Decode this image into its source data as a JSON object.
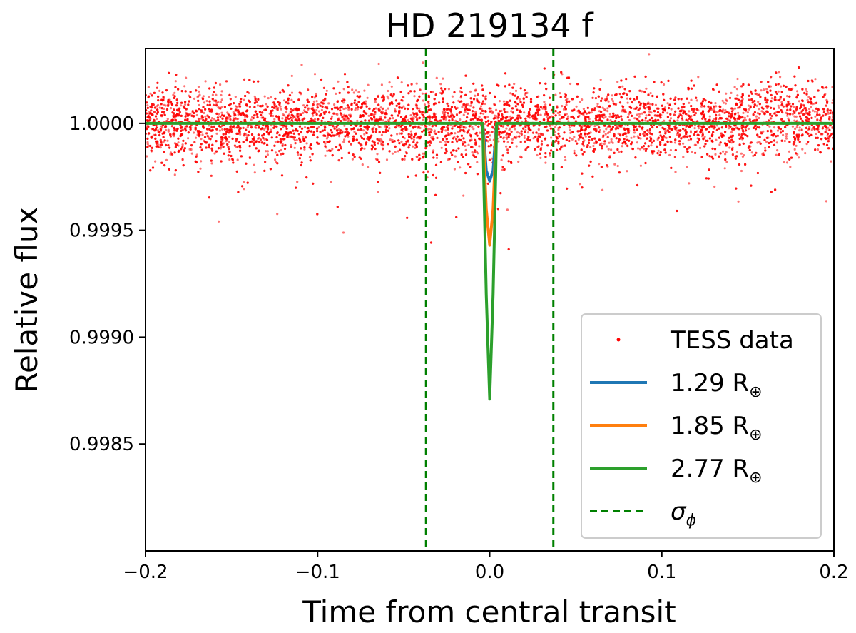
{
  "chart_data": {
    "type": "scatter",
    "title": "HD 219134 f",
    "xlabel": "Time from central transit",
    "ylabel": "Relative flux",
    "xlim": [
      -0.2,
      0.2
    ],
    "ylim": [
      0.998,
      1.00035
    ],
    "xticks": [
      -0.2,
      -0.1,
      0.0,
      0.1,
      0.2
    ],
    "xtick_labels": [
      "−0.2",
      "−0.1",
      "0.0",
      "0.1",
      "0.2"
    ],
    "yticks": [
      0.9985,
      0.999,
      0.9995,
      1.0
    ],
    "ytick_labels": [
      "0.9985",
      "0.9990",
      "0.9995",
      "1.0000"
    ],
    "grid": false,
    "legend_position": "lower right",
    "scatter": {
      "name": "TESS data",
      "color": "#ff0000",
      "baseline": 1.0,
      "scatter_sigma": 8.5e-05,
      "n_points": 9000
    },
    "series": [
      {
        "name": "1.29 R",
        "subscript": "⊕",
        "color": "#1f77b4",
        "x": [
          -0.004,
          -0.0035,
          -0.002,
          0.0,
          0.002,
          0.0035,
          0.004
        ],
        "values": [
          1.0,
          0.99995,
          0.99978,
          0.99973,
          0.99978,
          0.99995,
          1.0
        ]
      },
      {
        "name": "1.85 R",
        "subscript": "⊕",
        "color": "#ff7f0e",
        "x": [
          -0.004,
          -0.0035,
          -0.002,
          0.0,
          0.002,
          0.0035,
          0.004
        ],
        "values": [
          1.0,
          0.9999,
          0.9996,
          0.99943,
          0.9996,
          0.9999,
          1.0
        ]
      },
      {
        "name": "2.77 R",
        "subscript": "⊕",
        "color": "#2ca02c",
        "x": [
          -0.2,
          -0.004,
          -0.0035,
          -0.002,
          0.0,
          0.002,
          0.0035,
          0.004,
          0.2
        ],
        "values": [
          1.0,
          1.0,
          0.99975,
          0.9992,
          0.99871,
          0.9992,
          0.99975,
          1.0,
          1.0
        ]
      }
    ],
    "sigma_lines": {
      "name": "σ",
      "subscript": "ϕ",
      "color": "#008000",
      "x": [
        -0.037,
        0.037
      ]
    }
  }
}
